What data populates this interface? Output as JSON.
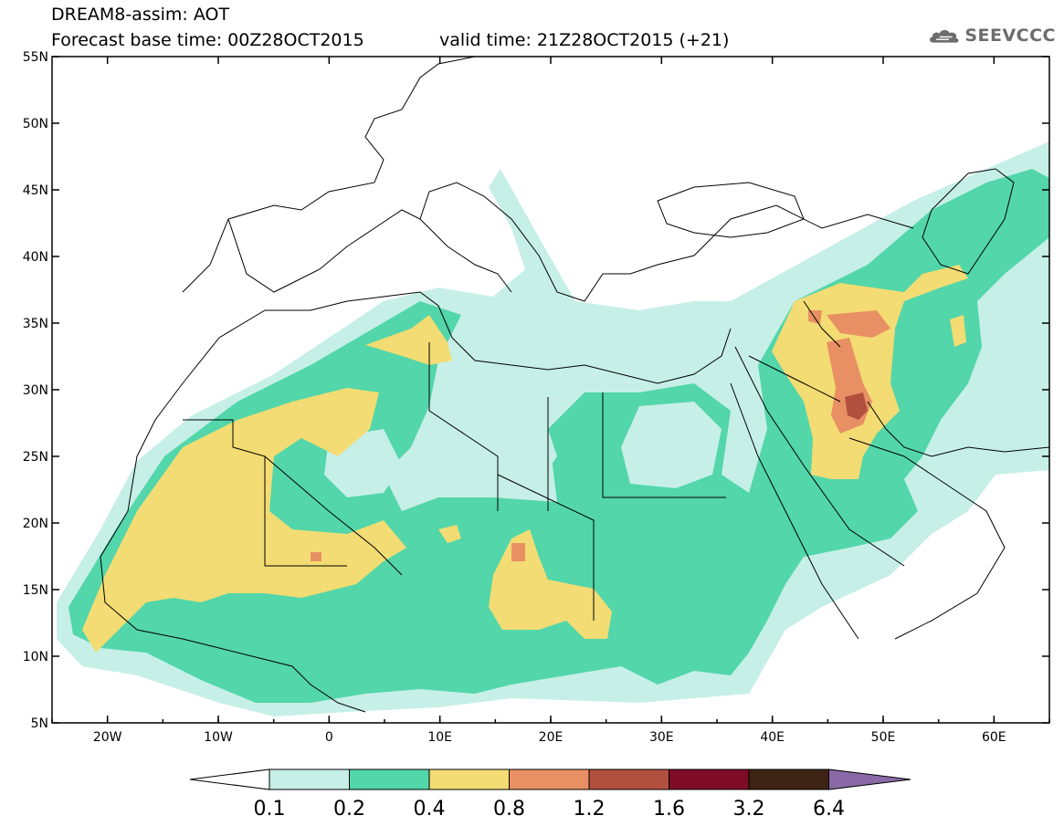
{
  "title": {
    "line1": "DREAM8-assim: AOT",
    "line2": "Forecast base time: 00Z28OCT2015",
    "valid": "valid time: 21Z28OCT2015 (+21)"
  },
  "logo": {
    "text": "SEEVCCC",
    "icon": "cloud-icon"
  },
  "map": {
    "lat_labels": [
      "55N",
      "50N",
      "45N",
      "40N",
      "35N",
      "30N",
      "25N",
      "20N",
      "15N",
      "10N",
      "5N"
    ],
    "lon_labels": [
      "20W",
      "10W",
      "0",
      "10E",
      "20E",
      "30E",
      "40E",
      "50E",
      "60E"
    ],
    "lon_range": [
      -25,
      65
    ],
    "lat_range": [
      5,
      55
    ]
  },
  "colorbar": {
    "labels": [
      "0.1",
      "0.2",
      "0.4",
      "0.8",
      "1.2",
      "1.6",
      "3.2",
      "6.4"
    ],
    "colors": [
      "#ffffff",
      "#c6efe7",
      "#52d6aa",
      "#f3dc73",
      "#e89064",
      "#b2503f",
      "#7e0c26",
      "#3d2415",
      "#8a6aa6"
    ]
  },
  "legend_levels": {
    "c1": "#c6efe7",
    "c2": "#52d6aa",
    "c3": "#f3dc73",
    "c4": "#e89064",
    "c5": "#b2503f"
  }
}
